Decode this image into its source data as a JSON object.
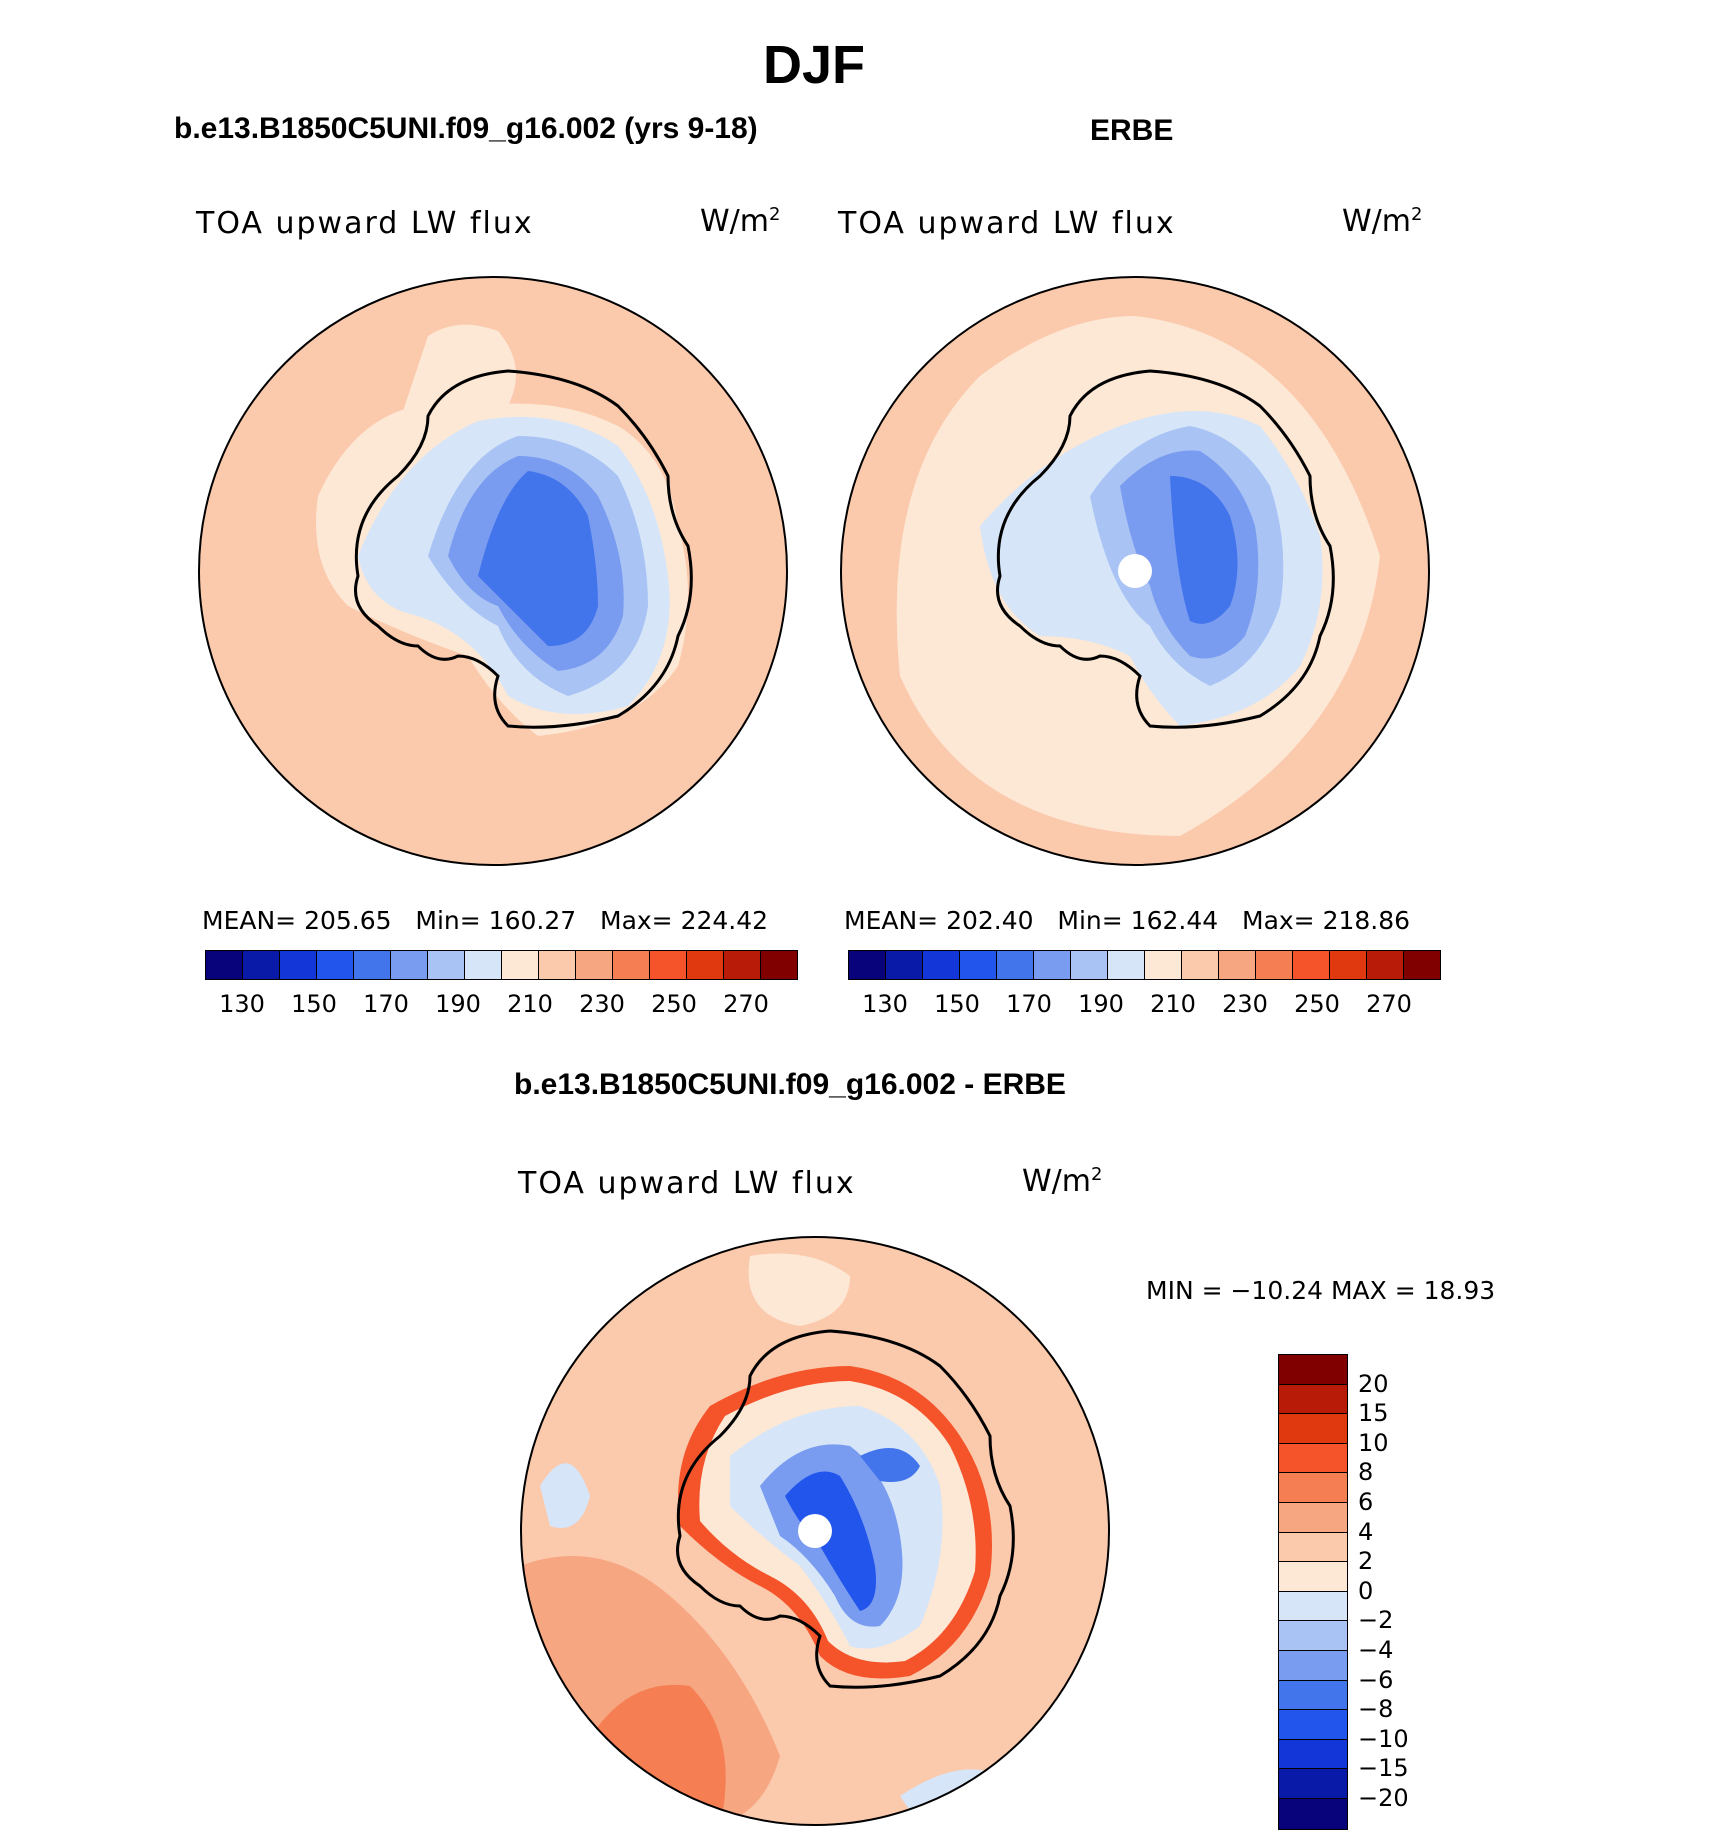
{
  "title": "DJF",
  "panels": [
    {
      "id": "model",
      "title": "b.e13.B1850C5UNI.f09_g16.002 (yrs 9-18)",
      "variable": "TOA upward LW flux",
      "units": "W/m",
      "units_exp": "2",
      "stats": {
        "mean_label": "MEAN=",
        "mean": "205.65",
        "min_label": "Min=",
        "min": "160.27",
        "max_label": "Max=",
        "max": "224.42"
      }
    },
    {
      "id": "obs",
      "title": "ERBE",
      "variable": "TOA upward LW flux",
      "units": "W/m",
      "units_exp": "2",
      "stats": {
        "mean_label": "MEAN=",
        "mean": "202.40",
        "min_label": "Min=",
        "min": "162.44",
        "max_label": "Max=",
        "max": "218.86"
      }
    },
    {
      "id": "diff",
      "title": "b.e13.B1850C5UNI.f09_g16.002 - ERBE",
      "variable": "TOA upward LW flux",
      "units": "W/m",
      "units_exp": "2",
      "stats_text": "MIN = −10.24 MAX =   18.93"
    }
  ],
  "abs_colorbar": {
    "tick_labels": [
      "130",
      "150",
      "170",
      "190",
      "210",
      "230",
      "250",
      "270"
    ],
    "colors": [
      "#08037b",
      "#0a1aa8",
      "#1236d8",
      "#2255ec",
      "#4274ec",
      "#7a9cf0",
      "#a9c3f4",
      "#d6e6f8",
      "#fde7d5",
      "#fbc9ac",
      "#f7a682",
      "#f57e52",
      "#f5542b",
      "#e0380f",
      "#b81c08",
      "#800000"
    ]
  },
  "diff_colorbar": {
    "tick_labels": [
      "20",
      "15",
      "10",
      "8",
      "6",
      "4",
      "2",
      "0",
      "−2",
      "−4",
      "−6",
      "−8",
      "−10",
      "−15",
      "−20"
    ],
    "colors": [
      "#800000",
      "#b81c08",
      "#e0380f",
      "#f5542b",
      "#f57e52",
      "#f7a682",
      "#fbc9ac",
      "#fde7d5",
      "#d6e6f8",
      "#a9c3f4",
      "#7a9cf0",
      "#4274ec",
      "#2255ec",
      "#1236d8",
      "#0a1aa8",
      "#08037b"
    ]
  },
  "map_colors": {
    "ocean_model": "#fbc9ac",
    "ocean_obs": "#fde7d5",
    "ocean_diff": "#fbc9ac",
    "coast": "#000000"
  }
}
